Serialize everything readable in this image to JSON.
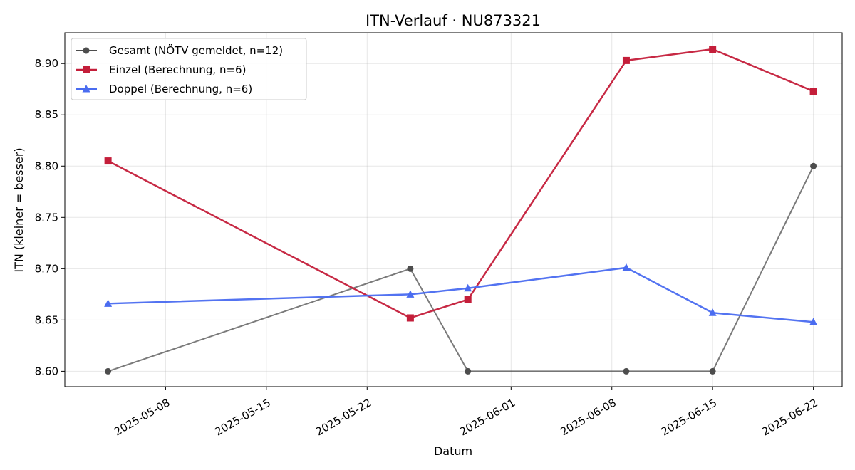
{
  "chart_data": {
    "type": "line",
    "title": "ITN-Verlauf · NU873321",
    "xlabel": "Datum",
    "ylabel": "ITN  (kleiner = besser)",
    "x_is_date": true,
    "xlim": [
      "2025-05-01",
      "2025-06-24"
    ],
    "ylim": [
      8.585,
      8.93
    ],
    "grid": true,
    "legend_position": "upper-left",
    "x_ticks": [
      "2025-05-08",
      "2025-05-15",
      "2025-05-22",
      "2025-06-01",
      "2025-06-08",
      "2025-06-15",
      "2025-06-22"
    ],
    "y_ticks": [
      8.6,
      8.65,
      8.7,
      8.75,
      8.8,
      8.85,
      8.9
    ],
    "series": [
      {
        "name": "Gesamt (NÖTV gemeldet, n=12)",
        "color": "#4d4d4d",
        "marker": "circle",
        "points": [
          {
            "x": "2025-05-04",
            "y": 8.6
          },
          {
            "x": "2025-05-25",
            "y": 8.7
          },
          {
            "x": "2025-05-29",
            "y": 8.6
          },
          {
            "x": "2025-06-09",
            "y": 8.6
          },
          {
            "x": "2025-06-15",
            "y": 8.6
          },
          {
            "x": "2025-06-22",
            "y": 8.8
          }
        ]
      },
      {
        "name": "Einzel (Berechnung, n=6)",
        "color": "#c41e3a",
        "marker": "square",
        "points": [
          {
            "x": "2025-05-04",
            "y": 8.805
          },
          {
            "x": "2025-05-25",
            "y": 8.652
          },
          {
            "x": "2025-05-29",
            "y": 8.67
          },
          {
            "x": "2025-06-09",
            "y": 8.903
          },
          {
            "x": "2025-06-15",
            "y": 8.914
          },
          {
            "x": "2025-06-22",
            "y": 8.873
          }
        ]
      },
      {
        "name": "Doppel (Berechnung, n=6)",
        "color": "#4a6cf0",
        "marker": "triangle",
        "points": [
          {
            "x": "2025-05-04",
            "y": 8.666
          },
          {
            "x": "2025-05-25",
            "y": 8.675
          },
          {
            "x": "2025-05-29",
            "y": 8.681
          },
          {
            "x": "2025-06-09",
            "y": 8.701
          },
          {
            "x": "2025-06-15",
            "y": 8.657
          },
          {
            "x": "2025-06-22",
            "y": 8.648
          }
        ]
      }
    ]
  }
}
